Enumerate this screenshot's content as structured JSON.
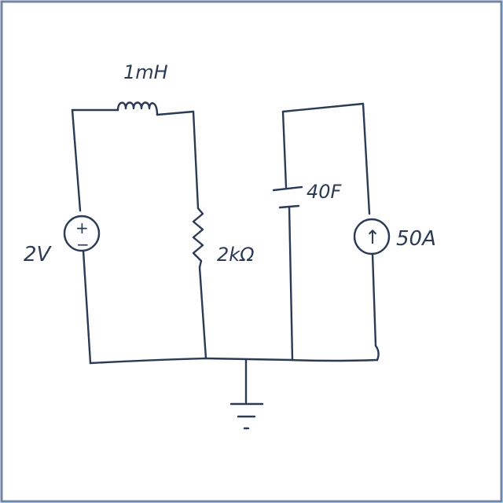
{
  "colors": {
    "ink": "#2b3a55",
    "border": "#6f86a8",
    "background": "#ffffff"
  },
  "components": {
    "inductor": {
      "label": "1mH"
    },
    "voltage_source": {
      "label": "2V",
      "plus": "+",
      "minus": "−"
    },
    "resistor": {
      "label": "2kΩ"
    },
    "capacitor": {
      "label": "40F"
    },
    "current_source": {
      "label": "50A",
      "arrow": "↑"
    }
  }
}
